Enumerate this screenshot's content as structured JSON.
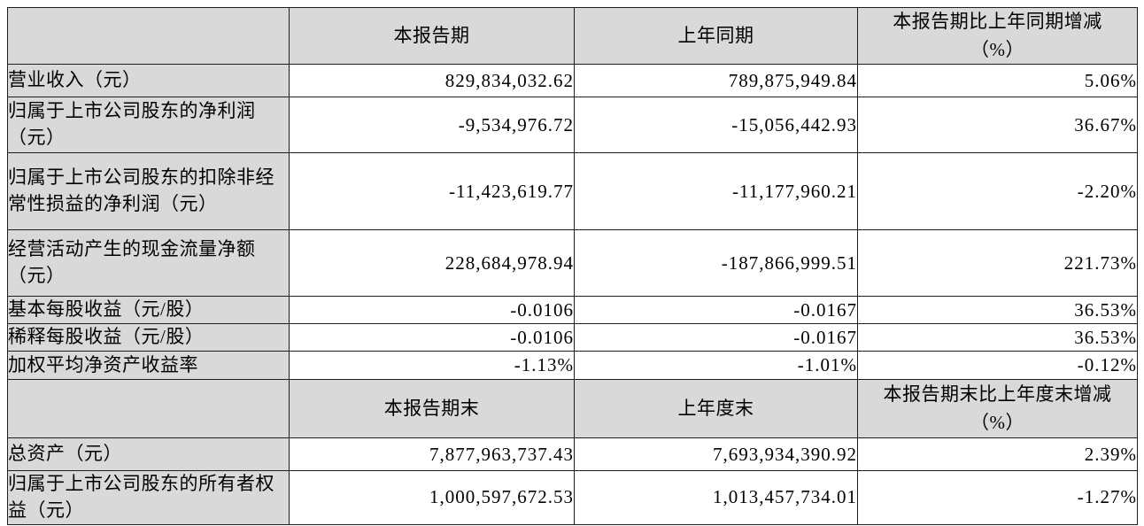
{
  "colors": {
    "header_background": "#d9d9d9",
    "label_background": "#d9d9d9",
    "value_background": "#ffffff",
    "border": "#1f1f1f",
    "text": "#000000"
  },
  "table": {
    "rows": [
      {
        "type": "header",
        "cells": [
          "",
          "本报告期",
          "上年同期",
          "本报告期比上年同期增减\n（%）"
        ]
      },
      {
        "type": "data",
        "cells": [
          "营业收入（元）",
          "829,834,032.62",
          "789,875,949.84",
          "5.06%"
        ]
      },
      {
        "type": "data",
        "cells": [
          "归属于上市公司股东的净利润（元）",
          "-9,534,976.72",
          "-15,056,442.93",
          "36.67%"
        ]
      },
      {
        "type": "data",
        "cells": [
          "归属于上市公司股东的扣除非经常性损益的净利润（元）",
          "-11,423,619.77",
          "-11,177,960.21",
          "-2.20%"
        ]
      },
      {
        "type": "data",
        "cells": [
          "经营活动产生的现金流量净额（元）",
          "228,684,978.94",
          "-187,866,999.51",
          "221.73%"
        ]
      },
      {
        "type": "data",
        "cells": [
          "基本每股收益（元/股）",
          "-0.0106",
          "-0.0167",
          "36.53%"
        ]
      },
      {
        "type": "data",
        "cells": [
          "稀释每股收益（元/股）",
          "-0.0106",
          "-0.0167",
          "36.53%"
        ]
      },
      {
        "type": "data",
        "cells": [
          "加权平均净资产收益率",
          "-1.13%",
          "-1.01%",
          "-0.12%"
        ]
      },
      {
        "type": "header",
        "cells": [
          "",
          "本报告期末",
          "上年度末",
          "本报告期末比上年度末增减\n（%）"
        ]
      },
      {
        "type": "data",
        "cells": [
          "总资产（元）",
          "7,877,963,737.43",
          "7,693,934,390.92",
          "2.39%"
        ]
      },
      {
        "type": "data",
        "cells": [
          "归属于上市公司股东的所有者权益（元）",
          "1,000,597,672.53",
          "1,013,457,734.01",
          "-1.27%"
        ]
      }
    ]
  }
}
